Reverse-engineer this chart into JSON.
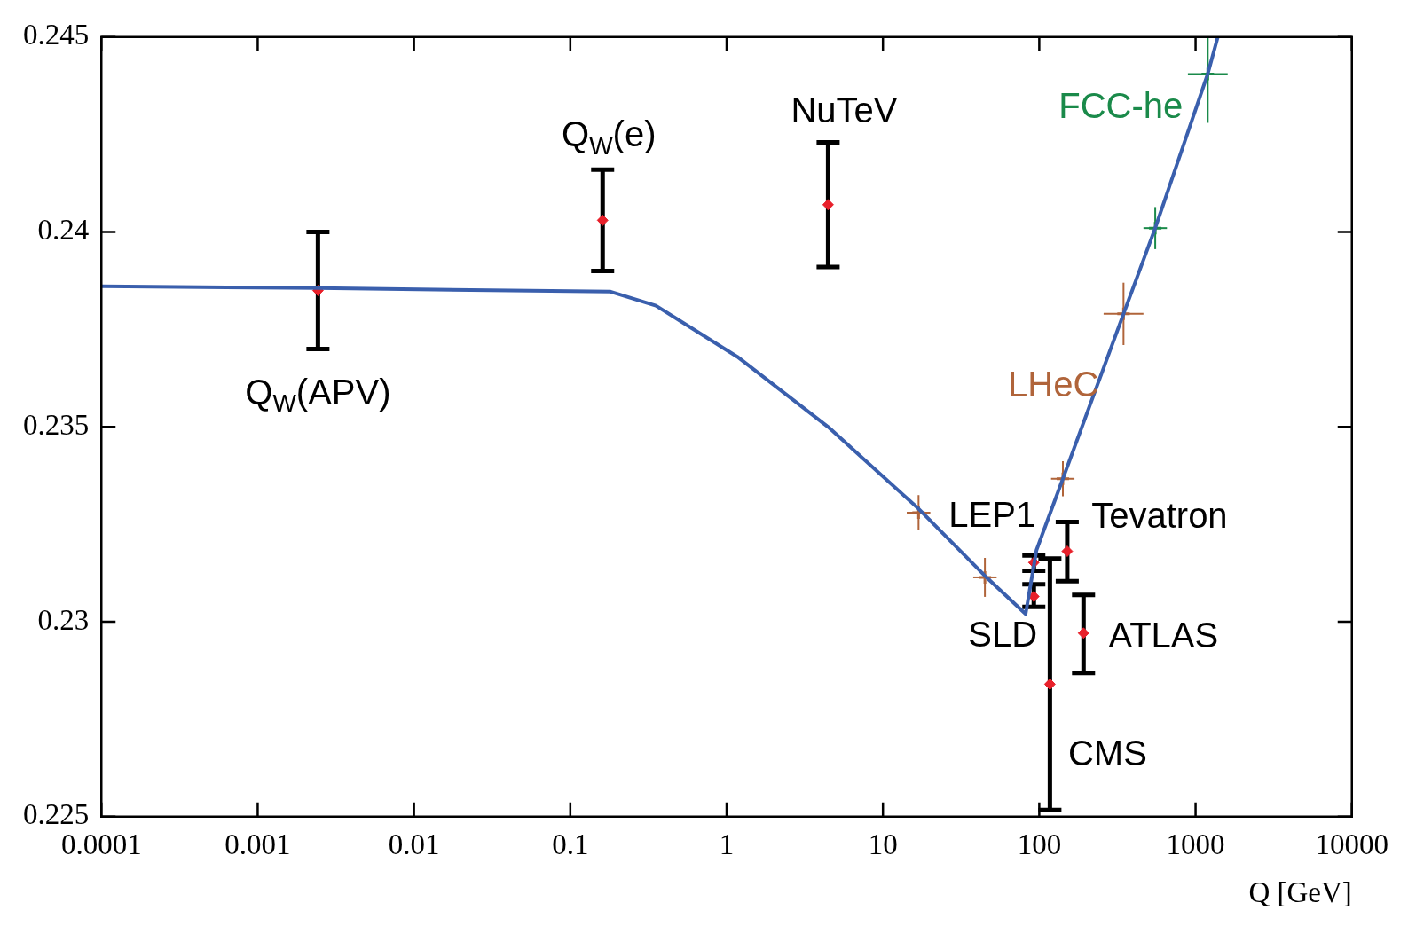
{
  "chart_data": {
    "type": "scatter",
    "xlabel": "Q [GeV]",
    "log": "x",
    "xlim": [
      0.0001,
      10000
    ],
    "xticks": [
      0.0001,
      0.001,
      0.01,
      0.1,
      1,
      10,
      100,
      1000,
      10000
    ],
    "ylim": [
      0.225,
      0.245
    ],
    "yticks": [
      0.225,
      0.23,
      0.235,
      0.24,
      0.245
    ],
    "legend": "top right",
    "series": [
      {
        "type": "line",
        "color": "#3a5fad",
        "line_style": "solid",
        "marker": "none",
        "x": [
          0.0001,
          0.00243,
          0.181,
          0.353,
          1.17,
          4.46,
          16.9,
          44.9,
          81.8,
          96,
          141.6,
          346,
          552,
          1197,
          1387
        ],
        "values": [
          0.23861,
          0.23856,
          0.23847,
          0.23811,
          0.2368,
          0.235,
          0.2329,
          0.23118,
          0.2302,
          0.23184,
          0.23367,
          0.2379,
          0.2401,
          0.24406,
          0.245
        ]
      },
      {
        "type": "scatter",
        "color": "#e8202a",
        "marker": "diamond",
        "x": [
          0.00243,
          0.161,
          4.46,
          92.3,
          92.3,
          151,
          192,
          117
        ],
        "values": [
          0.2385,
          0.2403,
          0.2407,
          0.23152,
          0.23065,
          0.23181,
          0.22971,
          0.2284
        ],
        "errors": [
          [
            0.237,
            0.24
          ],
          [
            0.239,
            0.2416
          ],
          [
            0.2391,
            0.2423
          ],
          [
            0.23131,
            0.2317
          ],
          [
            0.23038,
            0.23096
          ],
          [
            0.23104,
            0.23256
          ],
          [
            0.22869,
            0.23069
          ],
          [
            0.22517,
            0.23162
          ]
        ]
      },
      {
        "type": "scatter",
        "name": "LHeC",
        "color": "#b0643a",
        "marker": "cross",
        "x": [
          16.9,
          44.9,
          141.6,
          346
        ],
        "values": [
          0.2328,
          0.23114,
          0.23367,
          0.2379
        ],
        "errors": [
          0.00045,
          0.0005,
          0.00045,
          0.0008
        ],
        "xerrors": [
          [
            14.2,
            20.1
          ],
          [
            37.8,
            53.4
          ],
          [
            119,
            168
          ],
          [
            258,
            464
          ]
        ]
      },
      {
        "type": "scatter",
        "name": "FCC-he",
        "color": "#1a8a4a",
        "marker": "cross",
        "x": [
          552,
          1197
        ],
        "values": [
          0.2401,
          0.24405
        ],
        "errors": [
          0.00054,
          [
            0.2428,
            0.245
          ]
        ],
        "xerrors": [
          [
            464,
            656
          ],
          [
            893,
            1605
          ]
        ]
      }
    ],
    "annotations": [
      {
        "text": "Q$_{W}$(APV)",
        "x": 0.00243,
        "y": 0.2385
      },
      {
        "text": "Q$_{W}$(e)",
        "x": 0.161,
        "y": 0.2403
      },
      {
        "text": "NuTeV",
        "x": 4.46,
        "y": 0.2407
      },
      {
        "text": "LEP1",
        "x": 92.3,
        "y": 0.23152
      },
      {
        "text": "Tevatron",
        "x": 151,
        "y": 0.23181
      },
      {
        "text": "SLD",
        "x": 92.3,
        "y": 0.23065
      },
      {
        "text": "ATLAS",
        "x": 192,
        "y": 0.22971
      },
      {
        "text": "CMS",
        "x": 117,
        "y": 0.2284
      }
    ]
  }
}
